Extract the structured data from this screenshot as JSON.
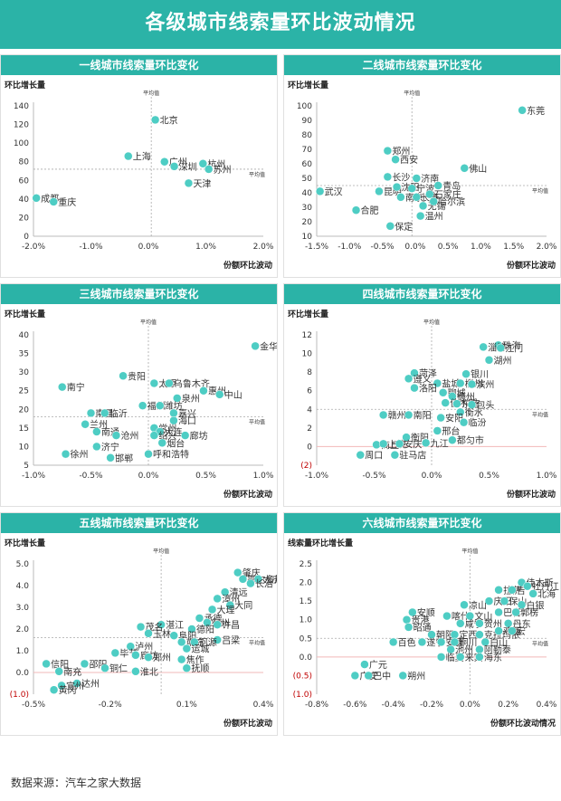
{
  "page_title": "各级城市线索量环比波动情况",
  "source": "数据来源：汽车之家大数据",
  "colors": {
    "accent": "#2bb3a7",
    "point": "#4ecdc4",
    "negative": "#c00000",
    "ref_line": "#aaaaaa"
  },
  "chart_data": [
    {
      "id": "tier1",
      "type": "scatter",
      "title": "一线城市线索量环比变化",
      "xlabel": "份额环比波动",
      "ylabel": "环比增长量",
      "xlim": [
        -2.0,
        2.0
      ],
      "ylim": [
        0,
        140
      ],
      "xticks": [
        -2.0,
        -1.0,
        0.0,
        1.0,
        2.0
      ],
      "xtick_labels": [
        "-2.0%",
        "-1.0%",
        "0.0%",
        "1.0%",
        "2.0%"
      ],
      "yticks": [
        0,
        20,
        40,
        60,
        80,
        100,
        120,
        140
      ],
      "ytick_labels": [
        "0",
        "20",
        "40",
        "60",
        "80",
        "100",
        "120",
        "140"
      ],
      "vline_x": 0.05,
      "hline_y": 72,
      "vline_label": "平均值",
      "hline_label": "平均值",
      "points": [
        {
          "label": "北京",
          "x": 0.12,
          "y": 125
        },
        {
          "label": "上海",
          "x": -0.35,
          "y": 86
        },
        {
          "label": "广州",
          "x": 0.28,
          "y": 80
        },
        {
          "label": "深圳",
          "x": 0.45,
          "y": 75
        },
        {
          "label": "杭州",
          "x": 0.95,
          "y": 78
        },
        {
          "label": "苏州",
          "x": 1.05,
          "y": 72
        },
        {
          "label": "天津",
          "x": 0.7,
          "y": 57
        },
        {
          "label": "成都",
          "x": -1.95,
          "y": 41
        },
        {
          "label": "重庆",
          "x": -1.65,
          "y": 37
        }
      ]
    },
    {
      "id": "tier2",
      "type": "scatter",
      "title": "二线城市线索量环比变化",
      "xlabel": "份额环比波动",
      "ylabel": "环比增长量",
      "xlim": [
        -1.5,
        2.0
      ],
      "ylim": [
        10,
        100
      ],
      "xticks": [
        -1.5,
        -1.0,
        -0.5,
        0.0,
        0.5,
        1.0,
        1.5,
        2.0
      ],
      "xtick_labels": [
        "-1.5%",
        "-1.0%",
        "-0.5%",
        "0.0%",
        "0.5%",
        "1.0%",
        "1.5%",
        "2.0%"
      ],
      "yticks": [
        10,
        20,
        30,
        40,
        50,
        60,
        70,
        80,
        90,
        100
      ],
      "ytick_labels": [
        "10",
        "20",
        "30",
        "40",
        "50",
        "60",
        "70",
        "80",
        "90",
        "100"
      ],
      "vline_x": -0.05,
      "hline_y": 45,
      "vline_label": "平均值",
      "hline_label": "平均值",
      "points": [
        {
          "label": "东莞",
          "x": 1.63,
          "y": 97
        },
        {
          "label": "郑州",
          "x": -0.42,
          "y": 69
        },
        {
          "label": "西安",
          "x": -0.3,
          "y": 63
        },
        {
          "label": "佛山",
          "x": 0.75,
          "y": 57
        },
        {
          "label": "长沙",
          "x": -0.42,
          "y": 51
        },
        {
          "label": "济南",
          "x": 0.02,
          "y": 50
        },
        {
          "label": "青岛",
          "x": 0.35,
          "y": 45
        },
        {
          "label": "昆明",
          "x": -0.55,
          "y": 41
        },
        {
          "label": "沈阳",
          "x": -0.28,
          "y": 44
        },
        {
          "label": "宁波",
          "x": -0.05,
          "y": 43
        },
        {
          "label": "南京",
          "x": -0.22,
          "y": 37
        },
        {
          "label": "长春",
          "x": 0.02,
          "y": 37
        },
        {
          "label": "石家庄",
          "x": 0.22,
          "y": 39
        },
        {
          "label": "无锡",
          "x": 0.12,
          "y": 31
        },
        {
          "label": "哈尔滨",
          "x": 0.28,
          "y": 34
        },
        {
          "label": "温州",
          "x": 0.08,
          "y": 24
        },
        {
          "label": "武汉",
          "x": -1.45,
          "y": 41
        },
        {
          "label": "合肥",
          "x": -0.9,
          "y": 28
        },
        {
          "label": "保定",
          "x": -0.38,
          "y": 17
        }
      ]
    },
    {
      "id": "tier3",
      "type": "scatter",
      "title": "三线城市线索量环比变化",
      "xlabel": "份额环比波动",
      "ylabel": "环比增长量",
      "xlim": [
        -1.0,
        1.0
      ],
      "ylim": [
        5,
        40
      ],
      "xticks": [
        -1.0,
        -0.5,
        0.0,
        0.5,
        1.0
      ],
      "xtick_labels": [
        "-1.0%",
        "-0.5%",
        "0.0%",
        "0.5%",
        "1.0%"
      ],
      "yticks": [
        5,
        10,
        15,
        20,
        25,
        30,
        35,
        40
      ],
      "ytick_labels": [
        "5",
        "10",
        "15",
        "20",
        "25",
        "30",
        "35",
        "40"
      ],
      "vline_x": 0.0,
      "hline_y": 18,
      "vline_label": "平均值",
      "hline_label": "平均值",
      "points": [
        {
          "label": "金华",
          "x": 0.93,
          "y": 37
        },
        {
          "label": "贵阳",
          "x": -0.22,
          "y": 29
        },
        {
          "label": "太原",
          "x": 0.05,
          "y": 27
        },
        {
          "label": "乌鲁木齐",
          "x": 0.18,
          "y": 27
        },
        {
          "label": "惠州",
          "x": 0.48,
          "y": 25
        },
        {
          "label": "中山",
          "x": 0.62,
          "y": 24
        },
        {
          "label": "泉州",
          "x": 0.25,
          "y": 23
        },
        {
          "label": "南宁",
          "x": -0.75,
          "y": 26
        },
        {
          "label": "南昌",
          "x": -0.5,
          "y": 19
        },
        {
          "label": "临沂",
          "x": -0.38,
          "y": 19
        },
        {
          "label": "福州",
          "x": -0.05,
          "y": 21
        },
        {
          "label": "潍坊",
          "x": 0.1,
          "y": 21
        },
        {
          "label": "嘉兴",
          "x": 0.22,
          "y": 19
        },
        {
          "label": "海口",
          "x": 0.22,
          "y": 17
        },
        {
          "label": "常州",
          "x": 0.05,
          "y": 15
        },
        {
          "label": "兰州",
          "x": -0.55,
          "y": 16
        },
        {
          "label": "南通",
          "x": -0.45,
          "y": 14
        },
        {
          "label": "沧州",
          "x": -0.28,
          "y": 13
        },
        {
          "label": "大连",
          "x": 0.1,
          "y": 14
        },
        {
          "label": "绍兴",
          "x": 0.05,
          "y": 13
        },
        {
          "label": "廊坊",
          "x": 0.32,
          "y": 13
        },
        {
          "label": "烟台",
          "x": 0.12,
          "y": 11
        },
        {
          "label": "济宁",
          "x": -0.45,
          "y": 10
        },
        {
          "label": "徐州",
          "x": -0.72,
          "y": 8
        },
        {
          "label": "邯郸",
          "x": -0.33,
          "y": 7
        },
        {
          "label": "呼和浩特",
          "x": 0.0,
          "y": 8
        }
      ]
    },
    {
      "id": "tier4",
      "type": "scatter",
      "title": "四线城市线索量环比变化",
      "xlabel": "份额环比波动",
      "ylabel": "环比增长量",
      "xlim": [
        -1.0,
        1.0
      ],
      "ylim": [
        -2,
        12
      ],
      "xticks": [
        -1.0,
        -0.5,
        0.0,
        0.5,
        1.0
      ],
      "xtick_labels": [
        "-1.0%",
        "-0.5%",
        "0.0%",
        "0.5%",
        "1.0%"
      ],
      "yticks": [
        -2,
        0,
        2,
        4,
        6,
        8,
        10,
        12
      ],
      "ytick_labels": [
        "(2)",
        "0",
        "2",
        "4",
        "6",
        "8",
        "10",
        "12"
      ],
      "vline_x": 0.0,
      "hline_y": 4,
      "vline_label": "平均值",
      "hline_label": "平均值",
      "points": [
        {
          "label": "珠海",
          "x": 0.58,
          "y": 10.9
        },
        {
          "label": "淄博",
          "x": 0.45,
          "y": 10.7
        },
        {
          "label": "江门",
          "x": 0.6,
          "y": 10.6
        },
        {
          "label": "湖州",
          "x": 0.5,
          "y": 9.3
        },
        {
          "label": "菏泽",
          "x": -0.15,
          "y": 7.9
        },
        {
          "label": "银川",
          "x": 0.3,
          "y": 7.8
        },
        {
          "label": "遵义",
          "x": -0.2,
          "y": 7.3
        },
        {
          "label": "盐城",
          "x": 0.05,
          "y": 6.8
        },
        {
          "label": "柳州",
          "x": 0.25,
          "y": 6.8
        },
        {
          "label": "滨州",
          "x": 0.35,
          "y": 6.7
        },
        {
          "label": "洛阳",
          "x": -0.15,
          "y": 6.3
        },
        {
          "label": "聊城",
          "x": 0.1,
          "y": 5.8
        },
        {
          "label": "德州",
          "x": 0.18,
          "y": 5.4
        },
        {
          "label": "佳木斯",
          "x": 0.12,
          "y": 4.7
        },
        {
          "label": "东营",
          "x": 0.22,
          "y": 4.6
        },
        {
          "label": "包头",
          "x": 0.35,
          "y": 4.5
        },
        {
          "label": "衡水",
          "x": 0.25,
          "y": 3.7
        },
        {
          "label": "赣州",
          "x": -0.42,
          "y": 3.4
        },
        {
          "label": "南阳",
          "x": -0.2,
          "y": 3.4
        },
        {
          "label": "安阳",
          "x": 0.08,
          "y": 3.1
        },
        {
          "label": "临汾",
          "x": 0.28,
          "y": 2.6
        },
        {
          "label": "邢台",
          "x": 0.05,
          "y": 1.7
        },
        {
          "label": "衡阳",
          "x": -0.22,
          "y": 1.0
        },
        {
          "label": "九江",
          "x": -0.05,
          "y": 0.4
        },
        {
          "label": "都匀市",
          "x": 0.18,
          "y": 0.7
        },
        {
          "label": "商丘",
          "x": -0.48,
          "y": 0.2
        },
        {
          "label": "上饶",
          "x": -0.42,
          "y": 0.3
        },
        {
          "label": "安庆",
          "x": -0.28,
          "y": 0.3
        },
        {
          "label": "周口",
          "x": -0.62,
          "y": -0.9
        },
        {
          "label": "驻马店",
          "x": -0.32,
          "y": -0.9
        }
      ]
    },
    {
      "id": "tier5",
      "type": "scatter",
      "title": "五线城市线索量环比变化",
      "xlabel": "份额环比波动",
      "ylabel": "环比增长量",
      "xlim": [
        -0.5,
        0.4
      ],
      "ylim": [
        -1.0,
        5.0
      ],
      "xticks": [
        -0.5,
        -0.2,
        0.1,
        0.4
      ],
      "xtick_labels": [
        "-0.5%",
        "-0.2%",
        "0.1%",
        "0.4%"
      ],
      "yticks": [
        -1.0,
        0.0,
        1.0,
        2.0,
        3.0,
        4.0,
        5.0
      ],
      "ytick_labels": [
        "(1.0)",
        "0.0",
        "1.0",
        "2.0",
        "3.0",
        "4.0",
        "5.0"
      ],
      "vline_x": 0.0,
      "hline_y": 1.6,
      "vline_label": "平均值",
      "hline_label": "平均值",
      "points": [
        {
          "label": "肇庆",
          "x": 0.3,
          "y": 4.6
        },
        {
          "label": "鄂尔多斯",
          "x": 0.32,
          "y": 4.3
        },
        {
          "label": "大庆",
          "x": 0.38,
          "y": 4.3
        },
        {
          "label": "长治",
          "x": 0.35,
          "y": 4.1
        },
        {
          "label": "清远",
          "x": 0.25,
          "y": 3.7
        },
        {
          "label": "漳州",
          "x": 0.22,
          "y": 3.4
        },
        {
          "label": "大同",
          "x": 0.27,
          "y": 3.1
        },
        {
          "label": "大理",
          "x": 0.2,
          "y": 2.9
        },
        {
          "label": "承德",
          "x": 0.15,
          "y": 2.5
        },
        {
          "label": "宿州",
          "x": 0.18,
          "y": 2.3
        },
        {
          "label": "许昌",
          "x": 0.22,
          "y": 2.2
        },
        {
          "label": "湛江",
          "x": 0.0,
          "y": 2.2
        },
        {
          "label": "德阳",
          "x": 0.12,
          "y": 2.0
        },
        {
          "label": "茂名",
          "x": -0.08,
          "y": 2.1
        },
        {
          "label": "玉林",
          "x": -0.05,
          "y": 1.8
        },
        {
          "label": "阜阳",
          "x": 0.05,
          "y": 1.7
        },
        {
          "label": "吕梁",
          "x": 0.22,
          "y": 1.5
        },
        {
          "label": "南充",
          "x": 0.08,
          "y": 1.4
        },
        {
          "label": "河源",
          "x": 0.13,
          "y": 1.4
        },
        {
          "label": "泸州",
          "x": -0.12,
          "y": 1.2
        },
        {
          "label": "运城",
          "x": 0.1,
          "y": 1.1
        },
        {
          "label": "毕节",
          "x": -0.18,
          "y": 0.9
        },
        {
          "label": "廊坊",
          "x": -0.1,
          "y": 0.8
        },
        {
          "label": "郑州",
          "x": -0.05,
          "y": 0.7
        },
        {
          "label": "焦作",
          "x": 0.08,
          "y": 0.6
        },
        {
          "label": "信阳",
          "x": -0.45,
          "y": 0.4
        },
        {
          "label": "邵阳",
          "x": -0.3,
          "y": 0.4
        },
        {
          "label": "南充",
          "x": -0.4,
          "y": 0.05
        },
        {
          "label": "铜仁",
          "x": -0.22,
          "y": 0.2
        },
        {
          "label": "淮北",
          "x": -0.1,
          "y": 0.05
        },
        {
          "label": "抚顺",
          "x": 0.1,
          "y": 0.2
        },
        {
          "label": "达州",
          "x": -0.33,
          "y": -0.5
        },
        {
          "label": "宜州",
          "x": -0.39,
          "y": -0.6
        },
        {
          "label": "黄冈",
          "x": -0.42,
          "y": -0.8
        }
      ]
    },
    {
      "id": "tier6",
      "type": "scatter",
      "title": "六线城市线索量环比变化",
      "xlabel": "份额环比波动情况",
      "ylabel": "线索量环比增长量",
      "xlim": [
        -0.8,
        0.4
      ],
      "ylim": [
        -1.0,
        2.5
      ],
      "xticks": [
        -0.8,
        -0.6,
        -0.4,
        -0.2,
        0.0,
        0.2,
        0.4
      ],
      "xtick_labels": [
        "-0.8%",
        "-0.6%",
        "-0.4%",
        "-0.2%",
        "0.0%",
        "0.2%",
        "0.4%"
      ],
      "yticks": [
        -1.0,
        -0.5,
        0.0,
        0.5,
        1.0,
        1.5,
        2.0,
        2.5
      ],
      "ytick_labels": [
        "(1.0)",
        "(0.5)",
        "0.0",
        "0.5",
        "1.0",
        "1.5",
        "2.0",
        "2.5"
      ],
      "vline_x": 0.0,
      "hline_y": 0.5,
      "vline_label": "平均值",
      "hline_label": "平均值",
      "points": [
        {
          "label": "佳木斯",
          "x": 0.27,
          "y": 2.0
        },
        {
          "label": "拉萨",
          "x": 0.15,
          "y": 1.8
        },
        {
          "label": "吉",
          "x": 0.22,
          "y": 1.8
        },
        {
          "label": "牡丹江",
          "x": 0.3,
          "y": 1.9
        },
        {
          "label": "北海",
          "x": 0.33,
          "y": 1.7
        },
        {
          "label": "庆阳",
          "x": 0.1,
          "y": 1.5
        },
        {
          "label": "保山",
          "x": 0.18,
          "y": 1.5
        },
        {
          "label": "白银",
          "x": 0.27,
          "y": 1.4
        },
        {
          "label": "凉山",
          "x": -0.03,
          "y": 1.4
        },
        {
          "label": "安顺",
          "x": -0.3,
          "y": 1.2
        },
        {
          "label": "喀什",
          "x": -0.12,
          "y": 1.1
        },
        {
          "label": "文山",
          "x": 0.0,
          "y": 1.1
        },
        {
          "label": "巴音",
          "x": 0.15,
          "y": 1.2
        },
        {
          "label": "郭楞",
          "x": 0.24,
          "y": 1.2
        },
        {
          "label": "贵港",
          "x": -0.33,
          "y": 1.0
        },
        {
          "label": "咸宁",
          "x": -0.05,
          "y": 0.9
        },
        {
          "label": "贺州",
          "x": 0.05,
          "y": 0.9
        },
        {
          "label": "丹东",
          "x": 0.2,
          "y": 0.9
        },
        {
          "label": "昭通",
          "x": -0.32,
          "y": 0.8
        },
        {
          "label": "朝阳",
          "x": -0.2,
          "y": 0.6
        },
        {
          "label": "定西",
          "x": -0.08,
          "y": 0.6
        },
        {
          "label": "克拉玛依",
          "x": 0.05,
          "y": 0.6
        },
        {
          "label": "鸡西",
          "x": 0.15,
          "y": 0.7
        },
        {
          "label": "宏",
          "x": 0.22,
          "y": 0.7
        },
        {
          "label": "百色",
          "x": -0.4,
          "y": 0.4
        },
        {
          "label": "遂宁",
          "x": -0.25,
          "y": 0.4
        },
        {
          "label": "安康",
          "x": -0.15,
          "y": 0.4
        },
        {
          "label": "铜川",
          "x": -0.08,
          "y": 0.4
        },
        {
          "label": "白山",
          "x": 0.08,
          "y": 0.4
        },
        {
          "label": "池州",
          "x": -0.1,
          "y": 0.2
        },
        {
          "label": "阿勒泰",
          "x": 0.05,
          "y": 0.2
        },
        {
          "label": "临夏",
          "x": -0.15,
          "y": 0.0
        },
        {
          "label": "来宾",
          "x": -0.05,
          "y": 0.0
        },
        {
          "label": "海东",
          "x": 0.05,
          "y": 0.0
        },
        {
          "label": "广元",
          "x": -0.55,
          "y": -0.2
        },
        {
          "label": "广安",
          "x": -0.6,
          "y": -0.5
        },
        {
          "label": "巴中",
          "x": -0.53,
          "y": -0.5
        },
        {
          "label": "朔州",
          "x": -0.35,
          "y": -0.5
        }
      ]
    }
  ]
}
